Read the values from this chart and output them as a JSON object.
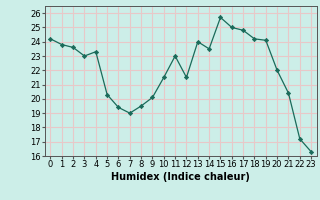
{
  "x": [
    0,
    1,
    2,
    3,
    4,
    5,
    6,
    7,
    8,
    9,
    10,
    11,
    12,
    13,
    14,
    15,
    16,
    17,
    18,
    19,
    20,
    21,
    22,
    23
  ],
  "y": [
    24.2,
    23.8,
    23.6,
    23.0,
    23.3,
    20.3,
    19.4,
    19.0,
    19.5,
    20.1,
    21.5,
    23.0,
    21.5,
    24.0,
    23.5,
    25.7,
    25.0,
    24.8,
    24.2,
    24.1,
    22.0,
    20.4,
    17.2,
    16.3
  ],
  "title": "",
  "xlabel": "Humidex (Indice chaleur)",
  "ylabel": "",
  "ylim": [
    16,
    26.5
  ],
  "xlim": [
    -0.5,
    23.5
  ],
  "yticks": [
    16,
    17,
    18,
    19,
    20,
    21,
    22,
    23,
    24,
    25,
    26
  ],
  "xticks": [
    0,
    1,
    2,
    3,
    4,
    5,
    6,
    7,
    8,
    9,
    10,
    11,
    12,
    13,
    14,
    15,
    16,
    17,
    18,
    19,
    20,
    21,
    22,
    23
  ],
  "line_color": "#1a6b5a",
  "marker": "D",
  "marker_size": 2.2,
  "bg_color": "#cceee8",
  "grid_color": "#e8c8c8",
  "label_fontsize": 7,
  "tick_fontsize": 6
}
